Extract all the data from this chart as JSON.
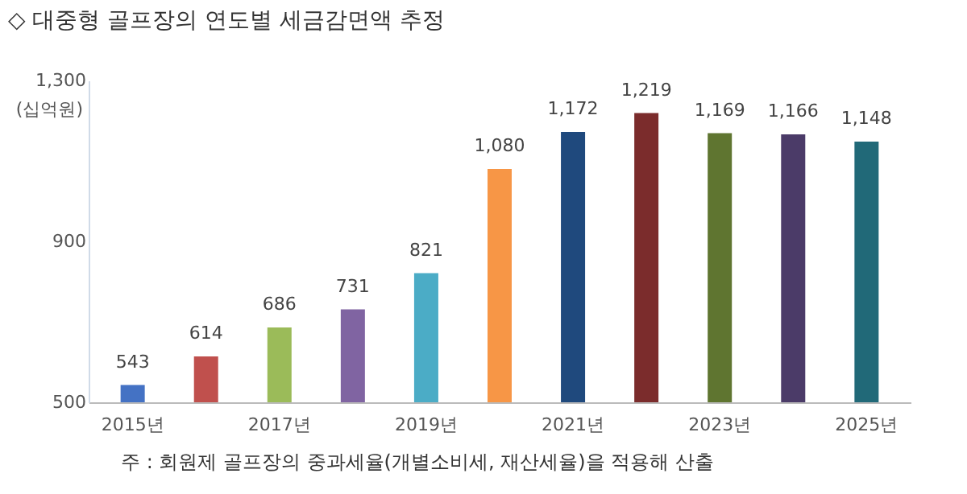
{
  "chart_data": {
    "type": "bar",
    "title": "◇ 대중형 골프장의 연도별 세금감면액 추정",
    "ylabel": "(십억원)",
    "categories": [
      "2015년",
      null,
      "2017년",
      null,
      "2019년",
      null,
      "2021년",
      null,
      "2023년",
      null,
      "2025년"
    ],
    "values": [
      543,
      614,
      686,
      731,
      821,
      1080,
      1172,
      1219,
      1169,
      1166,
      1148
    ],
    "colors": [
      "#4472c4",
      "#c0504d",
      "#9bbb59",
      "#8064a2",
      "#4bacc6",
      "#f79646",
      "#1f497d",
      "#7b2c2c",
      "#5f7530",
      "#4b3b68",
      "#216978"
    ],
    "ylim": [
      500,
      1300
    ],
    "yticks": [
      {
        "value": 500,
        "label": "500"
      },
      {
        "value": 900,
        "label": "900"
      },
      {
        "value": 1300,
        "label": "1,300"
      }
    ],
    "value_labels": [
      "543",
      "614",
      "686",
      "731",
      "821",
      "1,080",
      "1,172",
      "1,219",
      "1,169",
      "1,166",
      "1,148"
    ],
    "grid": false,
    "legend": false,
    "annotations": [
      "주 : 회원제 골프장의 중과세율(개별소비세, 재산세율)을 적용해 산출"
    ]
  }
}
